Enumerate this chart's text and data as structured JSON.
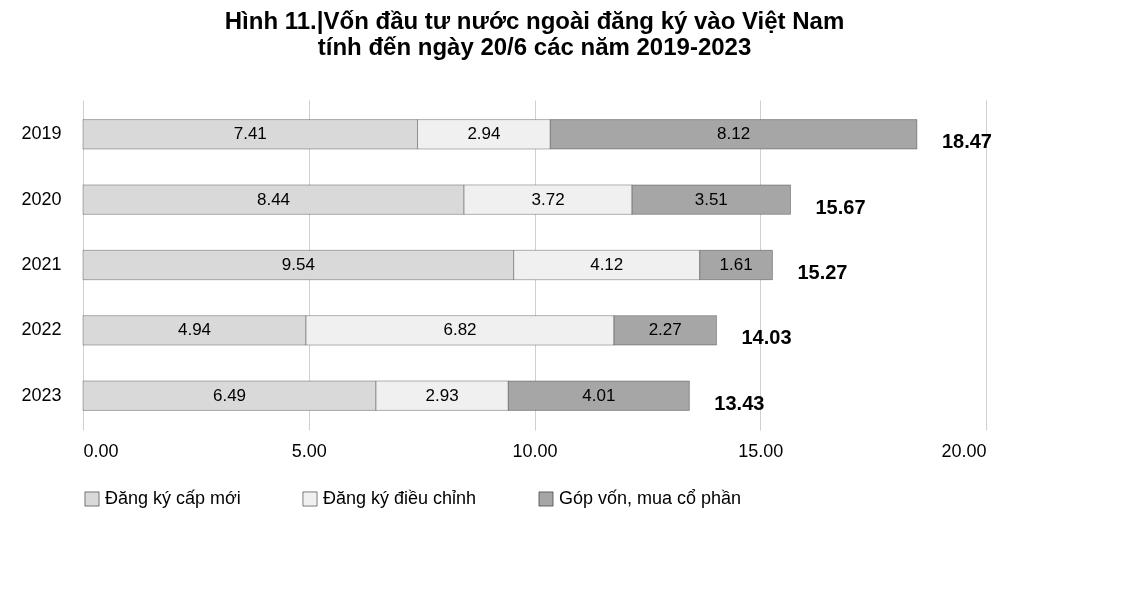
{
  "chart_data": {
    "type": "bar",
    "orientation": "horizontal",
    "stacked": true,
    "title": [
      "Hình 11.|Vốn đầu tư nước ngoài đăng ký vào Việt Nam",
      "tính đến ngày 20/6 các năm 2019-2023"
    ],
    "categories": [
      "2019",
      "2020",
      "2021",
      "2022",
      "2023"
    ],
    "series": [
      {
        "name": "Đăng ký cấp mới",
        "color": "#d9d9d9",
        "values": [
          7.41,
          8.44,
          9.54,
          4.94,
          6.49
        ]
      },
      {
        "name": "Đăng ký điều chỉnh",
        "color": "#f0f0f0",
        "values": [
          2.94,
          3.72,
          4.12,
          6.82,
          2.93
        ]
      },
      {
        "name": "Góp vốn, mua cổ phần",
        "color": "#a6a6a6",
        "values": [
          8.12,
          3.51,
          1.61,
          2.27,
          4.01
        ]
      }
    ],
    "totals": [
      "18.47",
      "15.67",
      "15.27",
      "14.03",
      "13.43"
    ],
    "data_labels": true,
    "xlim": [
      0,
      20
    ],
    "xticks": [
      {
        "value": 0,
        "label": "0.00"
      },
      {
        "value": 5,
        "label": "5.00"
      },
      {
        "value": 10,
        "label": "10.00"
      },
      {
        "value": 15,
        "label": "15.00"
      },
      {
        "value": 20,
        "label": "20.00"
      }
    ],
    "grid": "x",
    "legend": "bottom"
  }
}
